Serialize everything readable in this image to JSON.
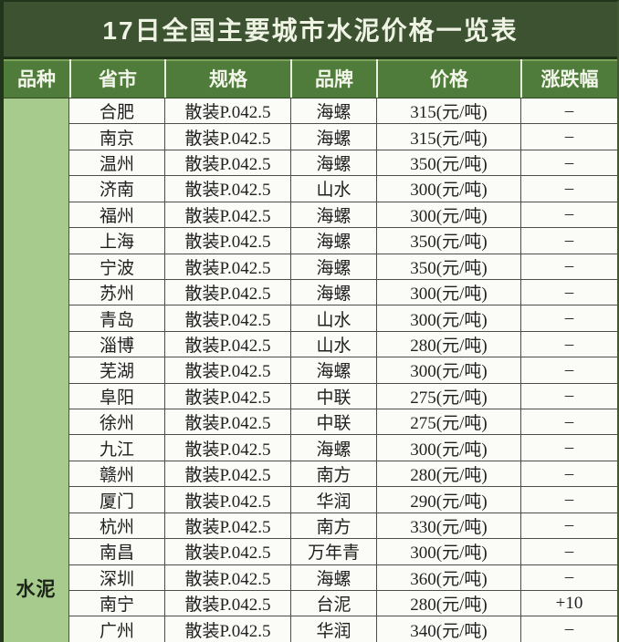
{
  "title": "17日全国主要城市水泥价格一览表",
  "colors": {
    "title_bg": "#3c5231",
    "header_bg": "#4f7c3a",
    "variety_col_bg": "#a6cb8c",
    "body_bg": "#fbfbf8",
    "grid_line": "#4d4d4d",
    "header_text": "#f2f5e9",
    "body_text": "#1f1f1f"
  },
  "table": {
    "headers": [
      "品种",
      "省市",
      "规格",
      "品牌",
      "价格",
      "涨跌幅"
    ],
    "variety_label": "水泥",
    "rows": [
      {
        "city": "合肥",
        "spec": "散装P.042.5",
        "brand": "海螺",
        "price": "315(元/吨)",
        "change": "–"
      },
      {
        "city": "南京",
        "spec": "散装P.042.5",
        "brand": "海螺",
        "price": "315(元/吨)",
        "change": "–"
      },
      {
        "city": "温州",
        "spec": "散装P.042.5",
        "brand": "海螺",
        "price": "350(元/吨)",
        "change": "–"
      },
      {
        "city": "济南",
        "spec": "散装P.042.5",
        "brand": "山水",
        "price": "300(元/吨)",
        "change": "–"
      },
      {
        "city": "福州",
        "spec": "散装P.042.5",
        "brand": "海螺",
        "price": "300(元/吨)",
        "change": "–"
      },
      {
        "city": "上海",
        "spec": "散装P.042.5",
        "brand": "海螺",
        "price": "350(元/吨)",
        "change": "–"
      },
      {
        "city": "宁波",
        "spec": "散装P.042.5",
        "brand": "海螺",
        "price": "350(元/吨)",
        "change": "–"
      },
      {
        "city": "苏州",
        "spec": "散装P.042.5",
        "brand": "海螺",
        "price": "300(元/吨)",
        "change": "–"
      },
      {
        "city": "青岛",
        "spec": "散装P.042.5",
        "brand": "山水",
        "price": "300(元/吨)",
        "change": "–"
      },
      {
        "city": "淄博",
        "spec": "散装P.042.5",
        "brand": "山水",
        "price": "280(元/吨)",
        "change": "–"
      },
      {
        "city": "芜湖",
        "spec": "散装P.042.5",
        "brand": "海螺",
        "price": "300(元/吨)",
        "change": "–"
      },
      {
        "city": "阜阳",
        "spec": "散装P.042.5",
        "brand": "中联",
        "price": "275(元/吨)",
        "change": "–"
      },
      {
        "city": "徐州",
        "spec": "散装P.042.5",
        "brand": "中联",
        "price": "275(元/吨)",
        "change": "–"
      },
      {
        "city": "九江",
        "spec": "散装P.042.5",
        "brand": "海螺",
        "price": "300(元/吨)",
        "change": "–"
      },
      {
        "city": "赣州",
        "spec": "散装P.042.5",
        "brand": "南方",
        "price": "280(元/吨)",
        "change": "–"
      },
      {
        "city": "厦门",
        "spec": "散装P.042.5",
        "brand": "华润",
        "price": "290(元/吨)",
        "change": "–"
      },
      {
        "city": "杭州",
        "spec": "散装P.042.5",
        "brand": "南方",
        "price": "330(元/吨)",
        "change": "–"
      },
      {
        "city": "南昌",
        "spec": "散装P.042.5",
        "brand": "万年青",
        "price": "300(元/吨)",
        "change": "–"
      },
      {
        "city": "深圳",
        "spec": "散装P.042.5",
        "brand": "海螺",
        "price": "360(元/吨)",
        "change": "–"
      },
      {
        "city": "南宁",
        "spec": "散装P.042.5",
        "brand": "台泥",
        "price": "280(元/吨)",
        "change": "+10"
      },
      {
        "city": "广州",
        "spec": "散装P.042.5",
        "brand": "华润",
        "price": "340(元/吨)",
        "change": "–"
      }
    ]
  }
}
